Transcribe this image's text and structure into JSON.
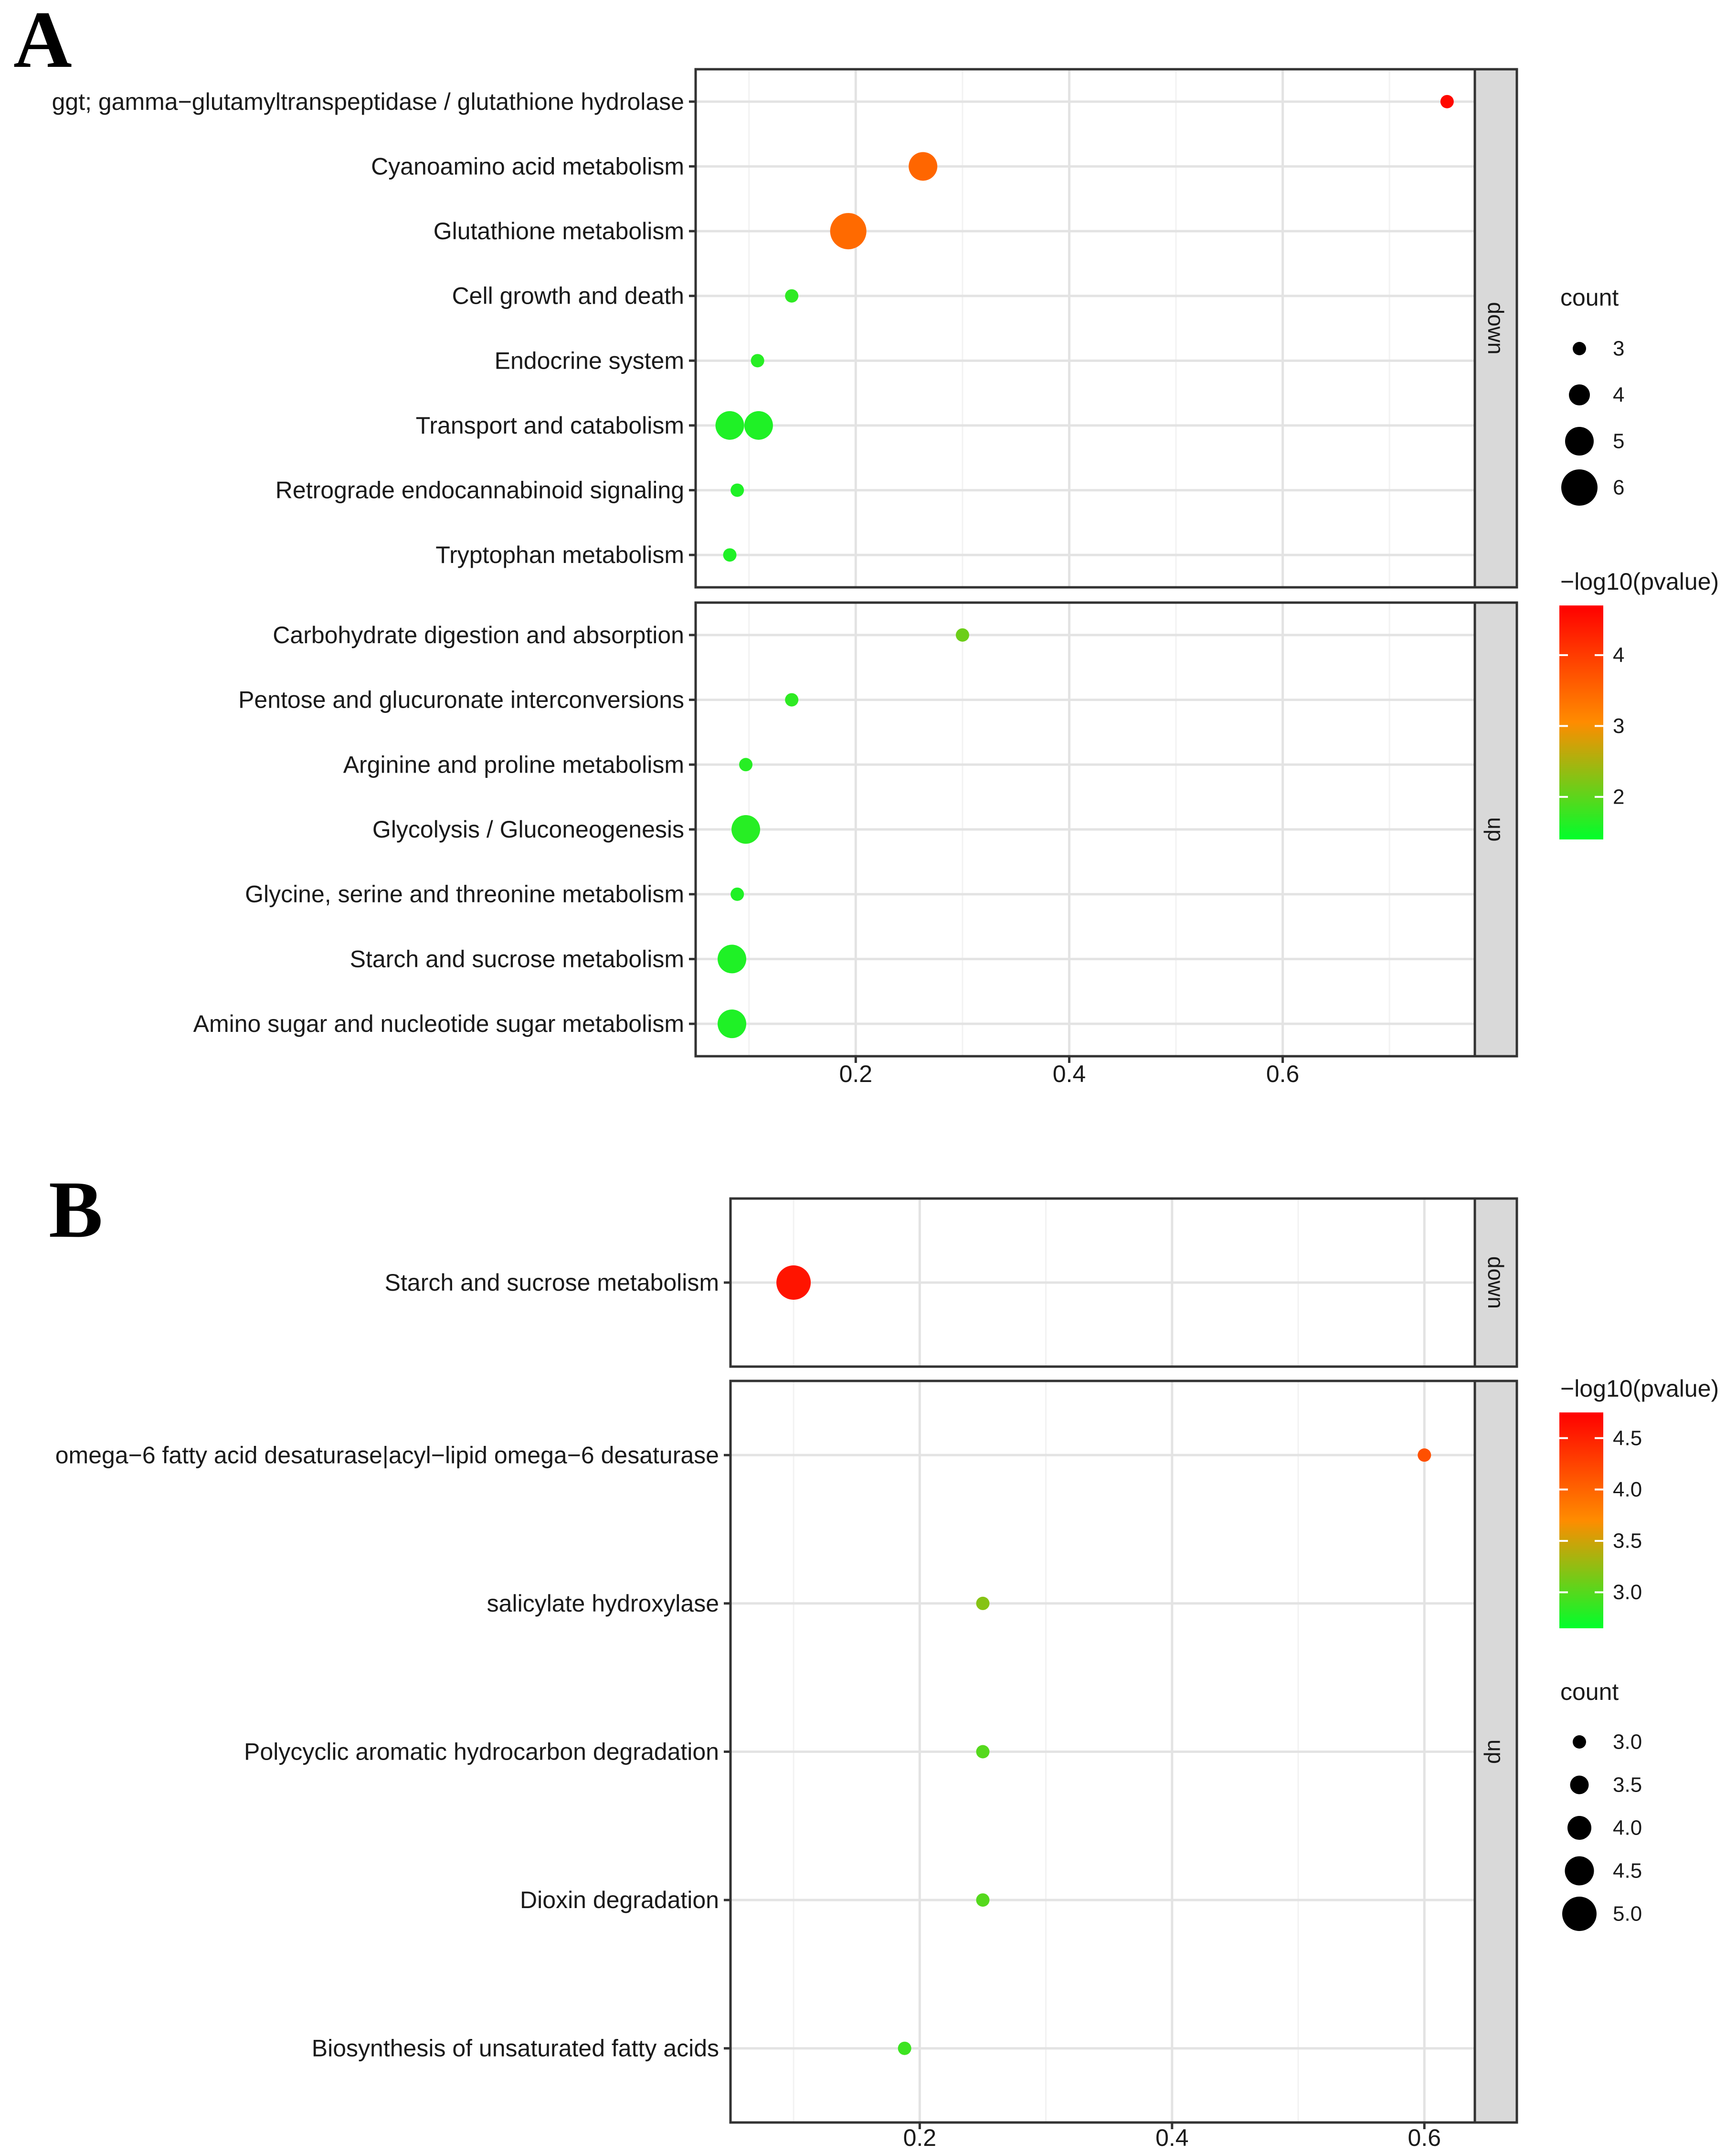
{
  "chart_data": [
    {
      "panel_label": "A",
      "type": "scatter",
      "xlim": [
        0.05,
        0.78
      ],
      "xticks": [
        0.2,
        0.4,
        0.6
      ],
      "xtick_labels": [
        "0.2",
        "0.4",
        "0.6"
      ],
      "grid": true,
      "facets": [
        {
          "strip": "down",
          "categories": [
            "ggt; gamma−glutamyltranspeptidase / glutathione hydrolase",
            "Cyanoamino acid metabolism",
            "Glutathione metabolism",
            "Cell growth and death",
            "Endocrine system",
            "Transport and catabolism",
            "Retrograde endocannabinoid signaling",
            "Tryptophan metabolism"
          ],
          "points": [
            {
              "category": 0,
              "x": 0.754,
              "count": 3,
              "neglog10p": 4.6
            },
            {
              "category": 1,
              "x": 0.263,
              "count": 5,
              "neglog10p": 3.5
            },
            {
              "category": 2,
              "x": 0.193,
              "count": 6,
              "neglog10p": 3.45
            },
            {
              "category": 3,
              "x": 0.14,
              "count": 3,
              "neglog10p": 1.7
            },
            {
              "category": 4,
              "x": 0.108,
              "count": 3,
              "neglog10p": 1.65
            },
            {
              "category": 5,
              "x": 0.082,
              "count": 5,
              "neglog10p": 1.6
            },
            {
              "category": 5,
              "x": 0.109,
              "count": 5,
              "neglog10p": 1.6
            },
            {
              "category": 6,
              "x": 0.089,
              "count": 3,
              "neglog10p": 1.6
            },
            {
              "category": 7,
              "x": 0.082,
              "count": 3,
              "neglog10p": 1.6
            }
          ]
        },
        {
          "strip": "up",
          "categories": [
            "Carbohydrate digestion and absorption",
            "Pentose and glucuronate interconversions",
            "Arginine and proline metabolism",
            "Glycolysis / Gluconeogenesis",
            "Glycine, serine and threonine metabolism",
            "Starch and sucrose metabolism",
            "Amino sugar and nucleotide sugar metabolism"
          ],
          "points": [
            {
              "category": 0,
              "x": 0.3,
              "count": 3,
              "neglog10p": 2.1
            },
            {
              "category": 1,
              "x": 0.14,
              "count": 3,
              "neglog10p": 1.7
            },
            {
              "category": 2,
              "x": 0.097,
              "count": 3,
              "neglog10p": 1.65
            },
            {
              "category": 3,
              "x": 0.097,
              "count": 5,
              "neglog10p": 1.65
            },
            {
              "category": 4,
              "x": 0.089,
              "count": 3,
              "neglog10p": 1.6
            },
            {
              "category": 5,
              "x": 0.084,
              "count": 5,
              "neglog10p": 1.6
            },
            {
              "category": 6,
              "x": 0.084,
              "count": 5,
              "neglog10p": 1.6
            }
          ]
        }
      ],
      "size_legend": {
        "title": "count",
        "breaks": [
          3,
          4,
          5,
          6
        ],
        "labels": [
          "3",
          "4",
          "5",
          "6"
        ],
        "range": [
          3,
          6
        ]
      },
      "color_legend": {
        "title": "−log10(pvalue)",
        "range": [
          1.4,
          4.7
        ],
        "breaks": [
          4,
          3,
          2
        ],
        "labels": [
          "4",
          "3",
          "2"
        ],
        "low_color": "#00ff2b",
        "mid_color": "#ff8c00",
        "high_color": "#ff0000"
      }
    },
    {
      "panel_label": "B",
      "type": "scatter",
      "xlim": [
        0.05,
        0.64
      ],
      "xticks": [
        0.2,
        0.4,
        0.6
      ],
      "xtick_labels": [
        "0.2",
        "0.4",
        "0.6"
      ],
      "grid": true,
      "facets": [
        {
          "strip": "down",
          "categories": [
            "Starch and sucrose metabolism"
          ],
          "points": [
            {
              "category": 0,
              "x": 0.1,
              "count": 5,
              "neglog10p": 4.6
            }
          ]
        },
        {
          "strip": "up",
          "categories": [
            "omega−6 fatty acid desaturase|acyl−lipid omega−6 desaturase",
            "salicylate hydroxylase",
            "Polycyclic aromatic hydrocarbon degradation",
            "Dioxin degradation",
            "Biosynthesis of unsaturated fatty acids"
          ],
          "points": [
            {
              "category": 0,
              "x": 0.6,
              "count": 3,
              "neglog10p": 4.15
            },
            {
              "category": 1,
              "x": 0.25,
              "count": 3,
              "neglog10p": 3.2
            },
            {
              "category": 2,
              "x": 0.25,
              "count": 3,
              "neglog10p": 3.0
            },
            {
              "category": 3,
              "x": 0.25,
              "count": 3,
              "neglog10p": 3.0
            },
            {
              "category": 4,
              "x": 0.188,
              "count": 3,
              "neglog10p": 2.9
            }
          ]
        }
      ],
      "size_legend": {
        "title": "count",
        "breaks": [
          3.0,
          3.5,
          4.0,
          4.5,
          5.0
        ],
        "labels": [
          "3.0",
          "3.5",
          "4.0",
          "4.5",
          "5.0"
        ],
        "range": [
          3,
          5
        ]
      },
      "color_legend": {
        "title": "−log10(pvalue)",
        "range": [
          2.65,
          4.75
        ],
        "breaks": [
          4.5,
          4.0,
          3.5,
          3.0
        ],
        "labels": [
          "4.5",
          "4.0",
          "3.5",
          "3.0"
        ],
        "low_color": "#00ff2b",
        "mid_color": "#ff8c00",
        "high_color": "#ff0000"
      }
    }
  ]
}
